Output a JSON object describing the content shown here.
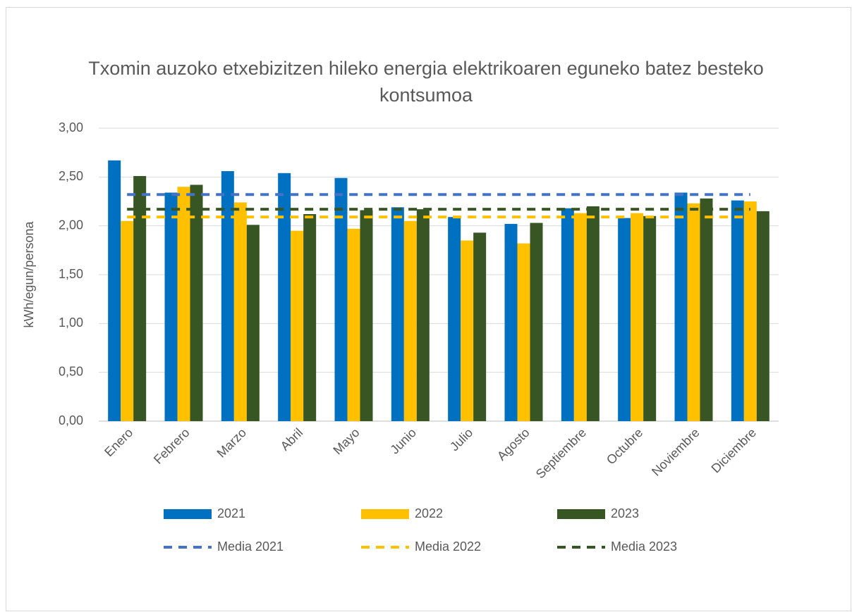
{
  "chart_data": {
    "type": "bar",
    "title": "Txomin auzoko etxebizitzen hileko energia elektrikoaren eguneko batez besteko kontsumoa",
    "y_label": "kWh/egun/persona",
    "categories": [
      "Enero",
      "Febrero",
      "Marzo",
      "Abril",
      "Mayo",
      "Junio",
      "Julio",
      "Agosto",
      "Septiembre",
      "Octubre",
      "Noviembre",
      "Diciembre"
    ],
    "series": [
      {
        "name": "2021",
        "type": "bar",
        "color": "#0070c0",
        "values": [
          2.67,
          2.34,
          2.56,
          2.54,
          2.49,
          2.19,
          2.09,
          2.02,
          2.18,
          2.08,
          2.34,
          2.26
        ]
      },
      {
        "name": "2022",
        "type": "bar",
        "color": "#ffc000",
        "values": [
          2.05,
          2.4,
          2.24,
          1.95,
          1.97,
          2.05,
          1.85,
          1.82,
          2.13,
          2.13,
          2.23,
          2.25
        ]
      },
      {
        "name": "2023",
        "type": "bar",
        "color": "#375623",
        "values": [
          2.51,
          2.42,
          2.01,
          2.12,
          2.16,
          2.17,
          1.93,
          2.03,
          2.2,
          2.1,
          2.28,
          2.15
        ]
      },
      {
        "name": "Media 2021",
        "type": "line",
        "dashed": true,
        "color": "#4472c4",
        "values": [
          2.32,
          2.32,
          2.32,
          2.32,
          2.32,
          2.32,
          2.32,
          2.32,
          2.32,
          2.32,
          2.32,
          2.32
        ]
      },
      {
        "name": "Media 2022",
        "type": "line",
        "dashed": true,
        "color": "#ffc000",
        "values": [
          2.09,
          2.09,
          2.09,
          2.09,
          2.09,
          2.09,
          2.09,
          2.09,
          2.09,
          2.09,
          2.09,
          2.09
        ]
      },
      {
        "name": "Media 2023",
        "type": "line",
        "dashed": true,
        "color": "#375623",
        "values": [
          2.17,
          2.17,
          2.17,
          2.17,
          2.17,
          2.17,
          2.17,
          2.17,
          2.17,
          2.17,
          2.17,
          2.17
        ]
      }
    ],
    "ylim": [
      0,
      3
    ],
    "yticks": [
      {
        "value": 0,
        "label": "0,00"
      },
      {
        "value": 0.5,
        "label": "0,50"
      },
      {
        "value": 1,
        "label": "1,00"
      },
      {
        "value": 1.5,
        "label": "1,50"
      },
      {
        "value": 2,
        "label": "2,00"
      },
      {
        "value": 2.5,
        "label": "2,50"
      },
      {
        "value": 3,
        "label": "3,00"
      }
    ],
    "grid": true,
    "legend": "bottom"
  }
}
